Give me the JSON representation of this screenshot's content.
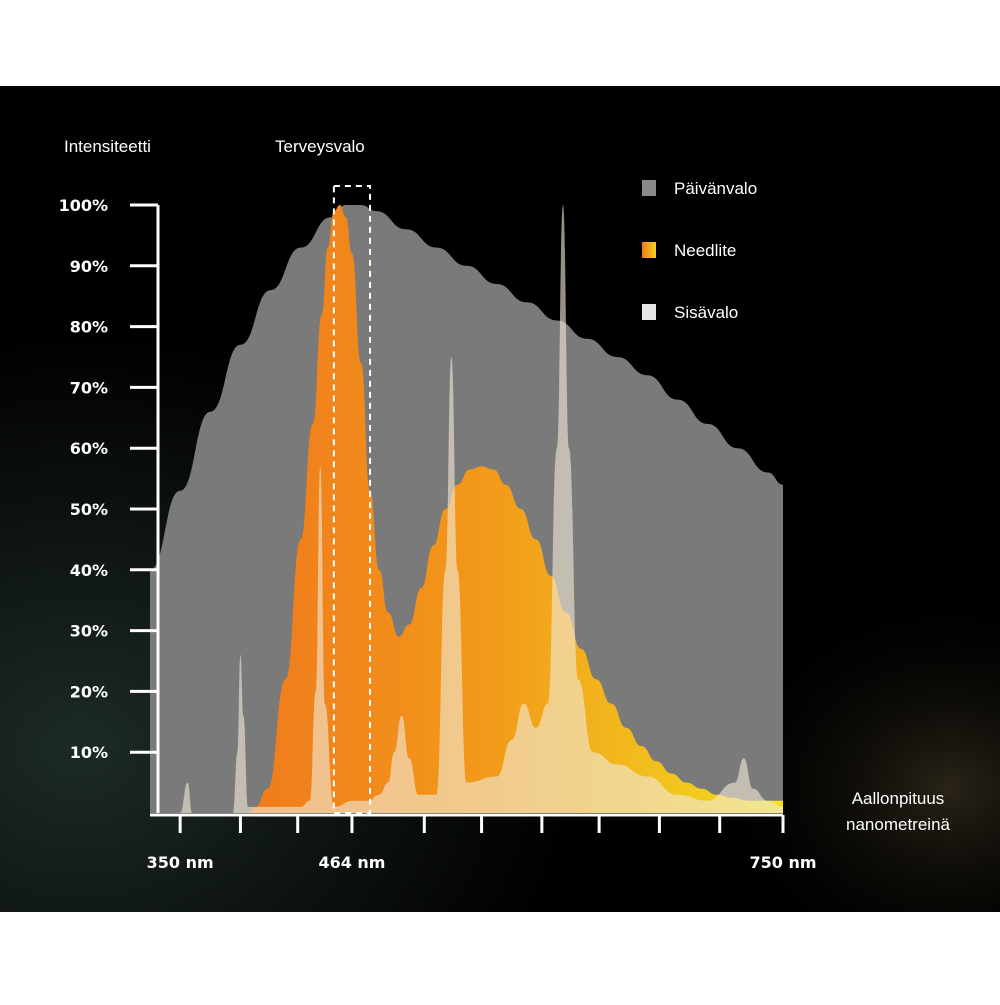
{
  "chart_data": {
    "type": "area",
    "ylabel": "Intensiteetti",
    "xlabel_lines": [
      "Aallonpituus",
      "nanometreinä"
    ],
    "highlight_label": "Terveysvalo",
    "highlight_range": [
      452,
      476
    ],
    "xlim": [
      330,
      750
    ],
    "ylim": [
      0,
      100
    ],
    "y_ticks": [
      {
        "value": 10,
        "label": "10%"
      },
      {
        "value": 20,
        "label": "20%"
      },
      {
        "value": 30,
        "label": "30%"
      },
      {
        "value": 40,
        "label": "40%"
      },
      {
        "value": 50,
        "label": "50%"
      },
      {
        "value": 60,
        "label": "60%"
      },
      {
        "value": 70,
        "label": "70%"
      },
      {
        "value": 80,
        "label": "80%"
      },
      {
        "value": 90,
        "label": "90%"
      },
      {
        "value": 100,
        "label": "100%"
      }
    ],
    "x_ticks": [
      350,
      390,
      428,
      464,
      512,
      550,
      590,
      628,
      668,
      708,
      750
    ],
    "x_tick_labels": [
      {
        "value": 350,
        "label": "350 nm"
      },
      {
        "value": 464,
        "label": "464 nm"
      },
      {
        "value": 750,
        "label": "750 nm"
      }
    ],
    "legend": [
      {
        "label": "Päivänvalo",
        "color": "#8a8a8a"
      },
      {
        "label": "Needlite",
        "color": "#f2a11a"
      },
      {
        "label": "Sisävalo",
        "color": "#e6e6e6"
      }
    ],
    "legend_position": "top-right",
    "series": [
      {
        "name": "Päivänvalo",
        "color": "#7a7a7a",
        "points": [
          [
            330,
            40
          ],
          [
            350,
            53
          ],
          [
            370,
            66
          ],
          [
            390,
            77
          ],
          [
            410,
            86
          ],
          [
            430,
            93
          ],
          [
            450,
            98
          ],
          [
            460,
            100
          ],
          [
            470,
            100
          ],
          [
            480,
            99
          ],
          [
            500,
            96
          ],
          [
            520,
            93
          ],
          [
            540,
            90
          ],
          [
            560,
            87
          ],
          [
            580,
            84
          ],
          [
            600,
            81
          ],
          [
            620,
            78
          ],
          [
            640,
            75
          ],
          [
            660,
            72
          ],
          [
            680,
            68
          ],
          [
            700,
            64
          ],
          [
            720,
            60
          ],
          [
            740,
            56
          ],
          [
            750,
            54
          ],
          [
            750,
            0
          ],
          [
            330,
            0
          ]
        ]
      },
      {
        "name": "Needlite",
        "color": "#f2a11a",
        "points": [
          [
            395,
            0
          ],
          [
            400,
            1
          ],
          [
            408,
            4
          ],
          [
            420,
            22
          ],
          [
            430,
            45
          ],
          [
            438,
            64
          ],
          [
            444,
            82
          ],
          [
            448,
            93
          ],
          [
            452,
            99
          ],
          [
            456,
            100
          ],
          [
            460,
            98
          ],
          [
            464,
            92
          ],
          [
            470,
            74
          ],
          [
            476,
            53
          ],
          [
            482,
            40
          ],
          [
            488,
            33
          ],
          [
            495,
            29
          ],
          [
            502,
            31
          ],
          [
            510,
            37
          ],
          [
            518,
            44
          ],
          [
            526,
            50
          ],
          [
            534,
            54
          ],
          [
            542,
            56.5
          ],
          [
            550,
            57
          ],
          [
            558,
            56.5
          ],
          [
            566,
            54
          ],
          [
            576,
            50
          ],
          [
            586,
            45
          ],
          [
            596,
            39
          ],
          [
            606,
            33
          ],
          [
            616,
            27
          ],
          [
            626,
            22
          ],
          [
            636,
            18
          ],
          [
            646,
            14
          ],
          [
            656,
            11
          ],
          [
            666,
            8.5
          ],
          [
            676,
            6.5
          ],
          [
            686,
            5
          ],
          [
            696,
            4
          ],
          [
            706,
            3
          ],
          [
            716,
            2.5
          ],
          [
            728,
            2
          ],
          [
            740,
            2
          ],
          [
            750,
            2
          ],
          [
            750,
            0
          ]
        ]
      },
      {
        "name": "Sisävalo",
        "color": "#efe6d2",
        "points": [
          [
            330,
            0
          ],
          [
            350,
            0
          ],
          [
            355,
            5
          ],
          [
            358,
            0
          ],
          [
            385,
            0
          ],
          [
            388,
            10
          ],
          [
            390,
            26
          ],
          [
            392,
            16
          ],
          [
            395,
            1
          ],
          [
            420,
            1
          ],
          [
            430,
            1
          ],
          [
            436,
            2
          ],
          [
            440,
            20
          ],
          [
            443,
            57
          ],
          [
            446,
            18
          ],
          [
            452,
            1
          ],
          [
            465,
            2
          ],
          [
            475,
            2
          ],
          [
            482,
            3
          ],
          [
            488,
            5
          ],
          [
            492,
            10
          ],
          [
            497,
            16
          ],
          [
            502,
            9
          ],
          [
            508,
            3
          ],
          [
            520,
            3
          ],
          [
            526,
            40
          ],
          [
            530,
            75
          ],
          [
            534,
            40
          ],
          [
            540,
            5
          ],
          [
            560,
            6
          ],
          [
            570,
            12
          ],
          [
            578,
            18
          ],
          [
            586,
            14
          ],
          [
            594,
            18
          ],
          [
            600,
            60
          ],
          [
            604,
            100
          ],
          [
            608,
            60
          ],
          [
            614,
            22
          ],
          [
            624,
            10
          ],
          [
            640,
            8
          ],
          [
            660,
            6
          ],
          [
            680,
            3
          ],
          [
            700,
            2
          ],
          [
            718,
            5
          ],
          [
            724,
            9
          ],
          [
            730,
            4
          ],
          [
            740,
            2
          ],
          [
            750,
            1
          ],
          [
            750,
            0
          ]
        ]
      }
    ]
  }
}
